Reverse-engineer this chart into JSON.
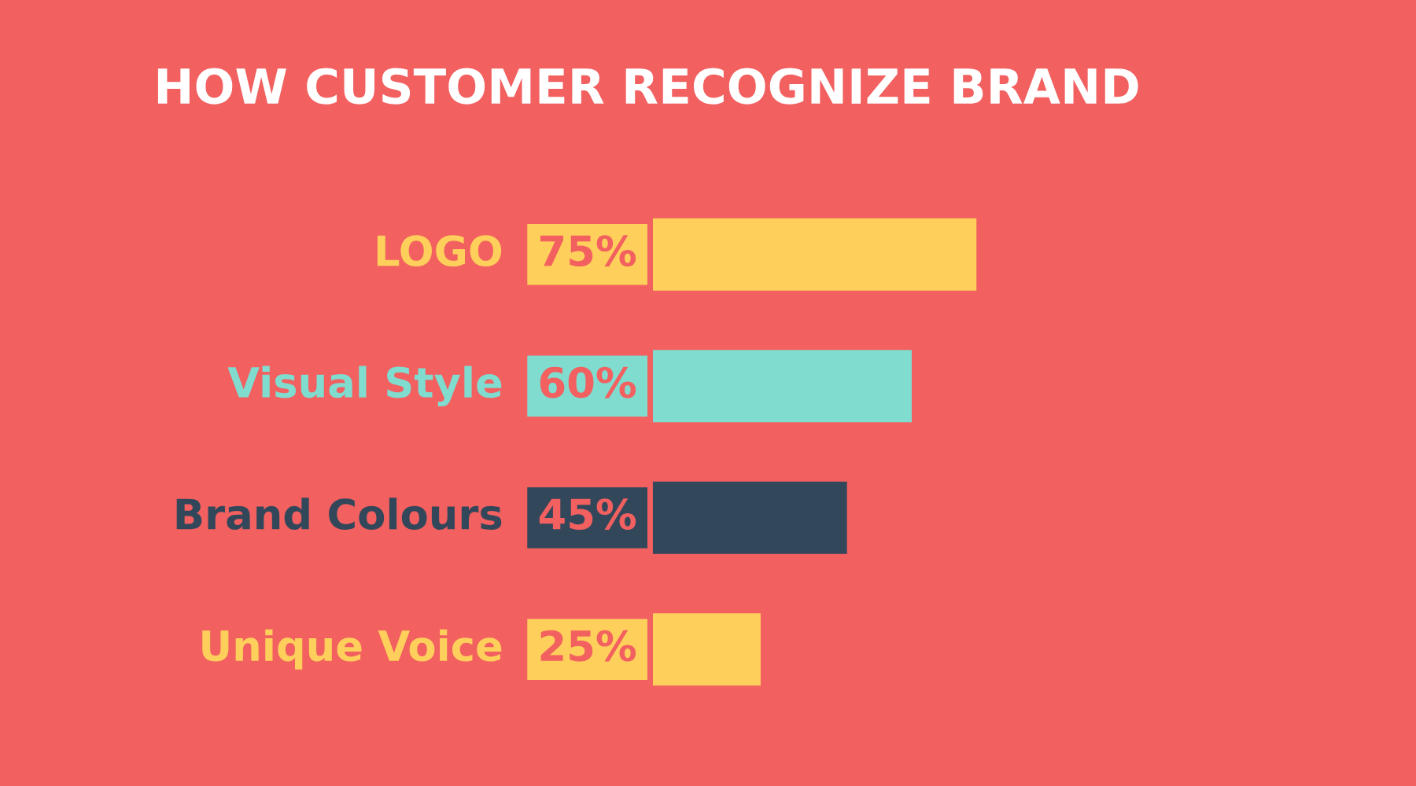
{
  "chart_data": {
    "type": "bar",
    "orientation": "horizontal",
    "title": "HOW CUSTOMER RECOGNIZE BRAND",
    "categories": [
      "LOGO",
      "Visual Style",
      "Brand Colours",
      "Unique Voice"
    ],
    "values": [
      75,
      60,
      45,
      25
    ],
    "colors": [
      "#fecf5b",
      "#7fdccf",
      "#33475b",
      "#fecf5b"
    ],
    "value_labels": [
      "75%",
      "60%",
      "45%",
      "25%"
    ],
    "tick_labels": false
  }
}
